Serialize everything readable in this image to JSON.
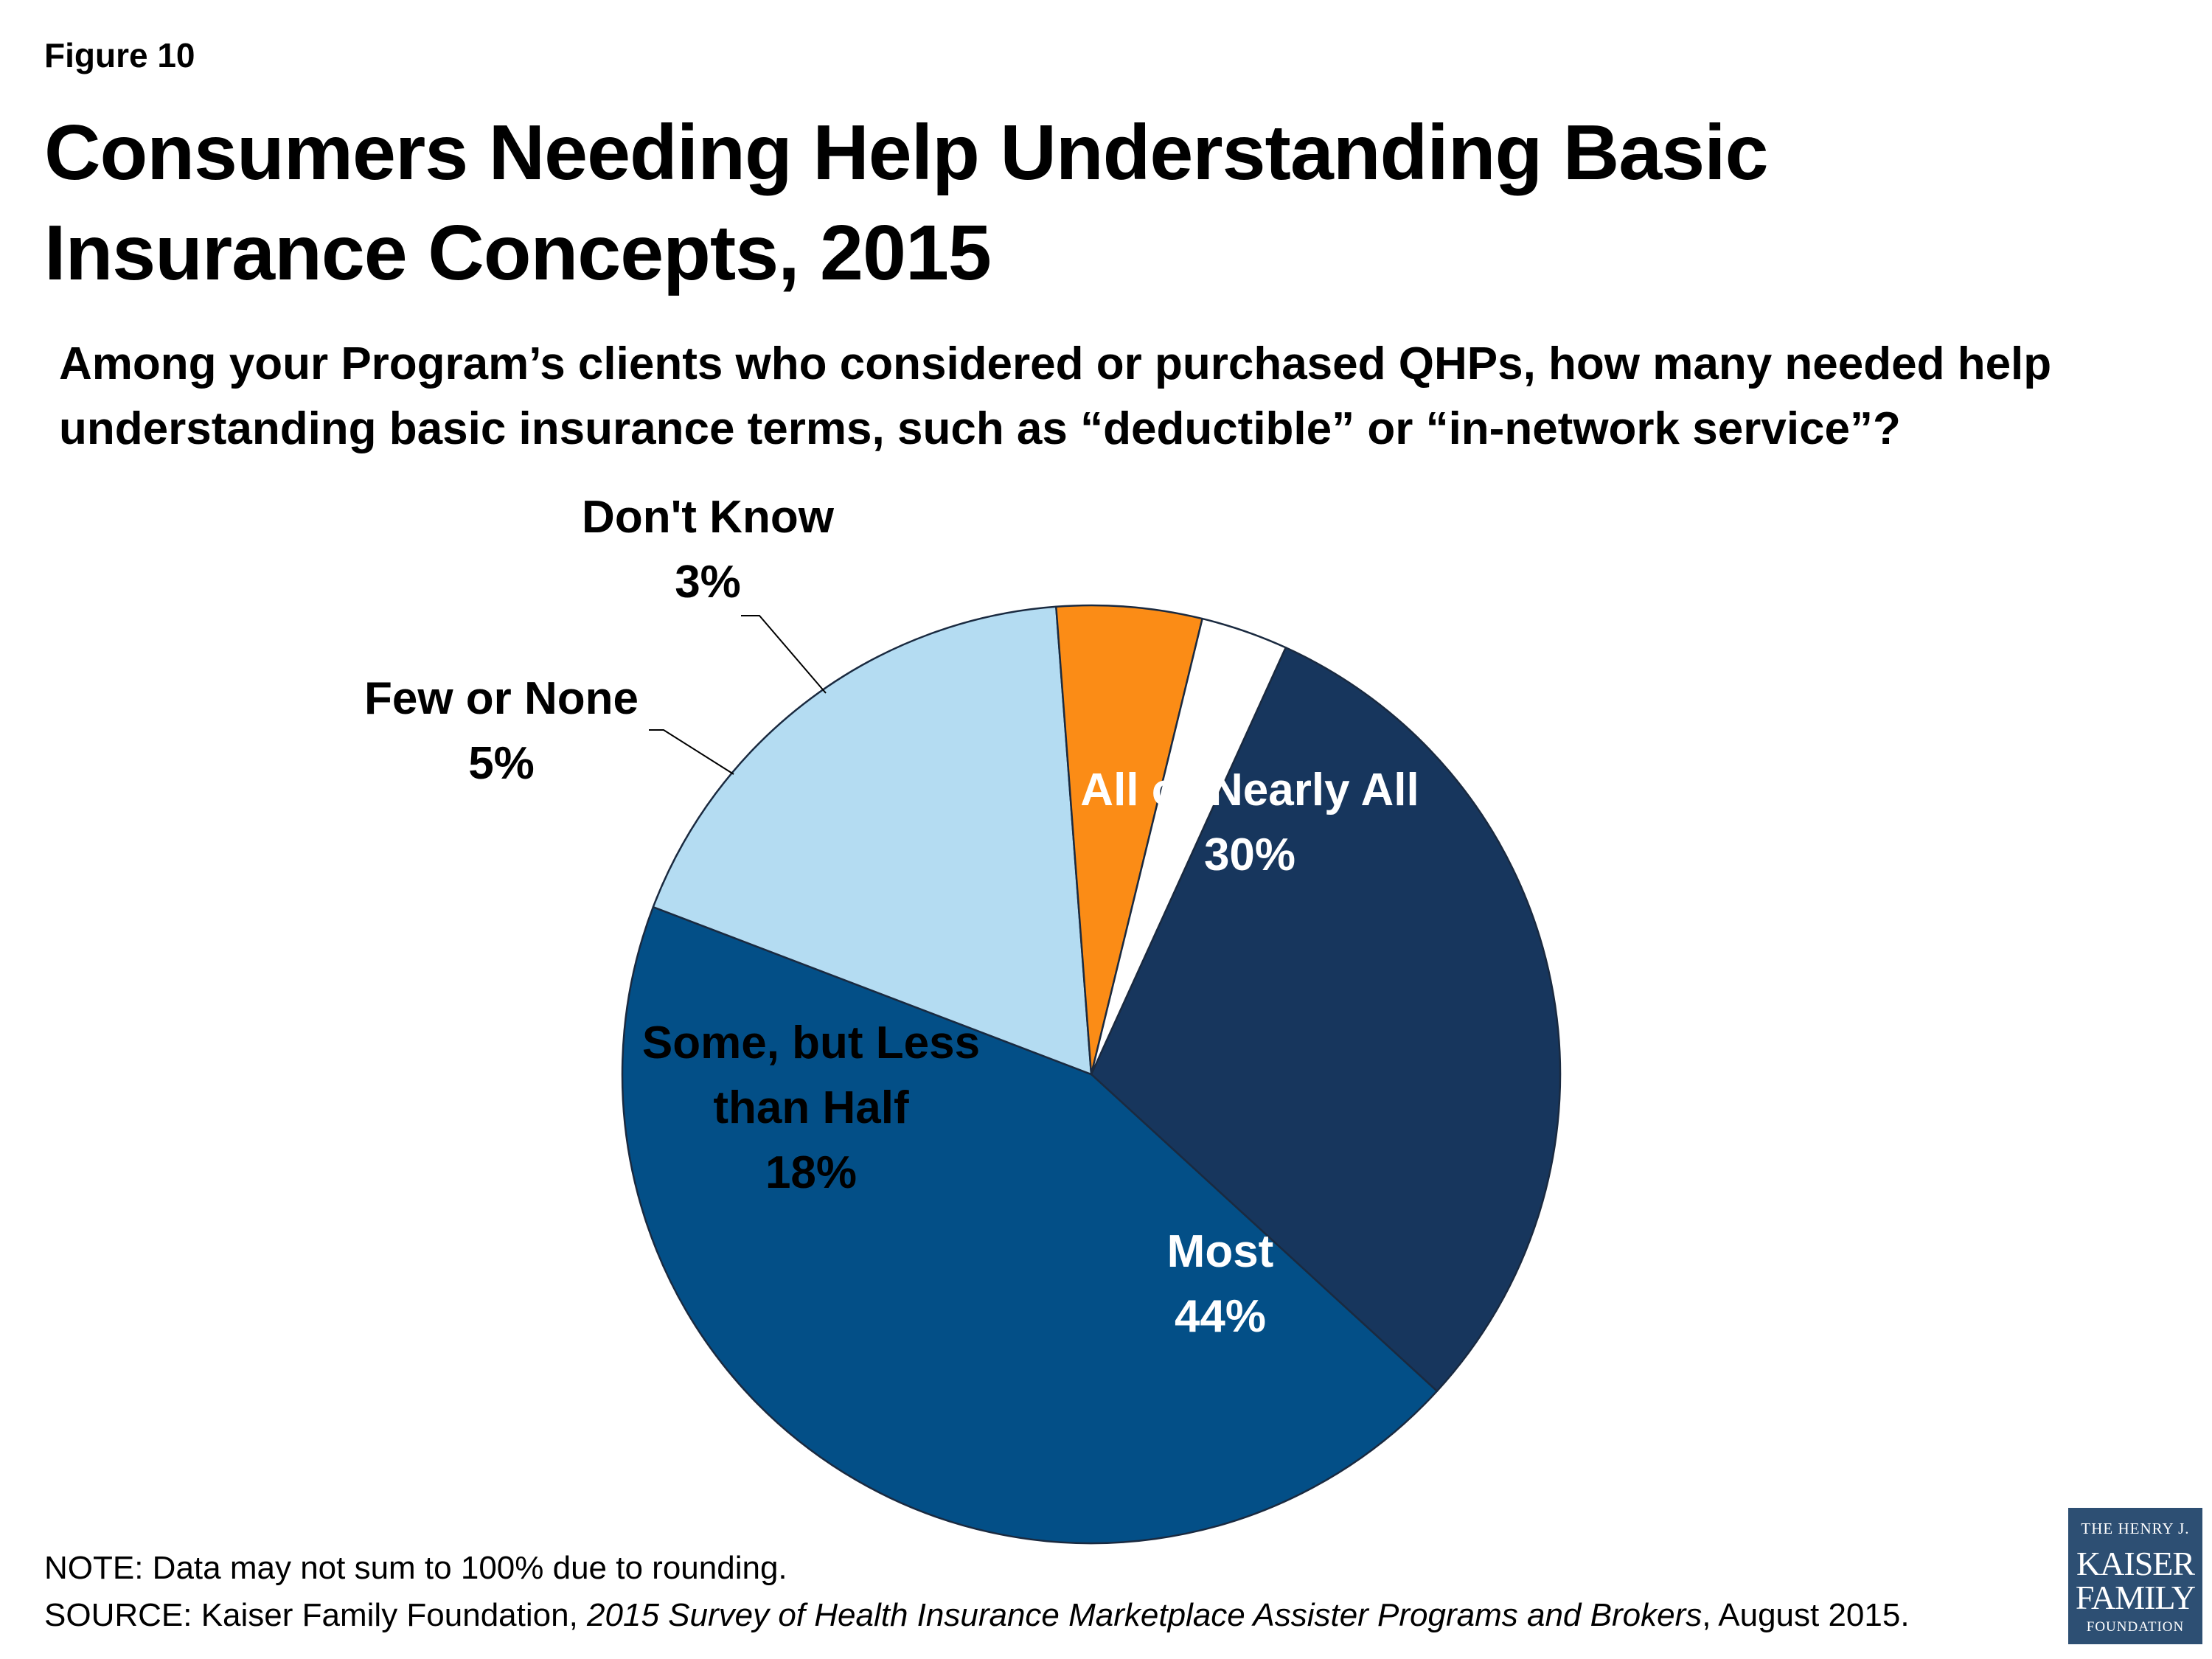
{
  "figure_label": "Figure 10",
  "title": "Consumers Needing Help Understanding Basic Insurance Concepts, 2015",
  "subtitle": "Among your Program’s clients who considered or purchased QHPs, how many needed help understanding basic insurance terms, such as “deductible” or “in-network service”?",
  "chart_data": {
    "type": "pie",
    "slices": [
      {
        "label": [
          "All or Nearly All"
        ],
        "value": 30,
        "display": "30%",
        "color": "#17365d",
        "text_color": "#ffffff"
      },
      {
        "label": [
          "Most"
        ],
        "value": 44,
        "display": "44%",
        "color": "#034f87",
        "text_color": "#ffffff"
      },
      {
        "label": [
          "Some, but Less",
          "than Half"
        ],
        "value": 18,
        "display": "18%",
        "color": "#b4dcf2",
        "text_color": "#000000"
      },
      {
        "label": [
          "Few or None"
        ],
        "value": 5,
        "display": "5%",
        "color": "#fb8c16",
        "text_color": "#000000"
      },
      {
        "label": [
          "Don't Know"
        ],
        "value": 3,
        "display": "3%",
        "color": "#ffffff",
        "text_color": "#000000"
      }
    ]
  },
  "notes": {
    "note": "NOTE: Data may not sum to 100% due to rounding.",
    "source_prefix": "SOURCE: Kaiser Family Foundation, ",
    "source_title": "2015 Survey of Health Insurance Marketplace Assister Programs and Brokers",
    "source_suffix": ", August 2015."
  },
  "logo": {
    "line1": "THE HENRY J.",
    "line2": "KAISER",
    "line3": "FAMILY",
    "line4": "FOUNDATION"
  }
}
